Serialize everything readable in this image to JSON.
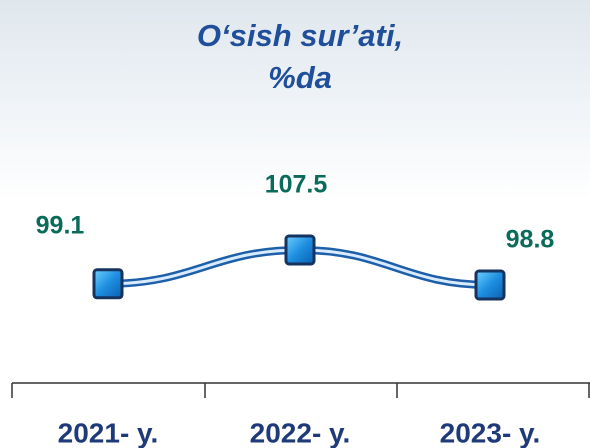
{
  "chart_data": {
    "type": "line",
    "title": [
      "O‘sish sur’ati,",
      "%da"
    ],
    "categories": [
      "2021- y.",
      "2022- y.",
      "2023- y."
    ],
    "values": [
      99.1,
      107.5,
      98.8
    ],
    "color": "#2a7fd4"
  }
}
